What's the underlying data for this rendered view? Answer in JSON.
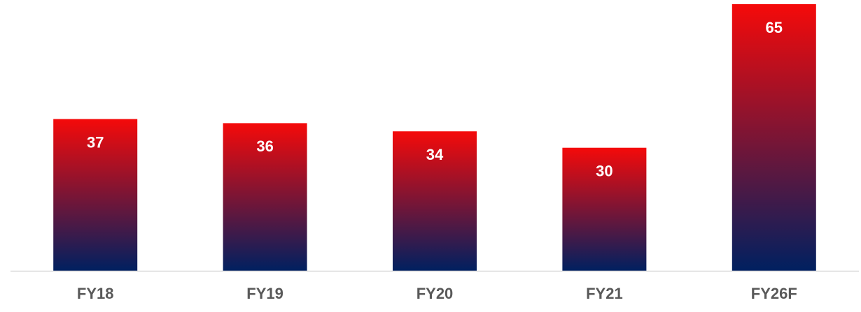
{
  "chart_data": {
    "type": "bar",
    "categories": [
      "FY18",
      "FY19",
      "FY20",
      "FY21",
      "FY26F"
    ],
    "values": [
      37,
      36,
      34,
      30,
      65
    ],
    "color": [
      "#f50a0a",
      "#002060"
    ]
  }
}
